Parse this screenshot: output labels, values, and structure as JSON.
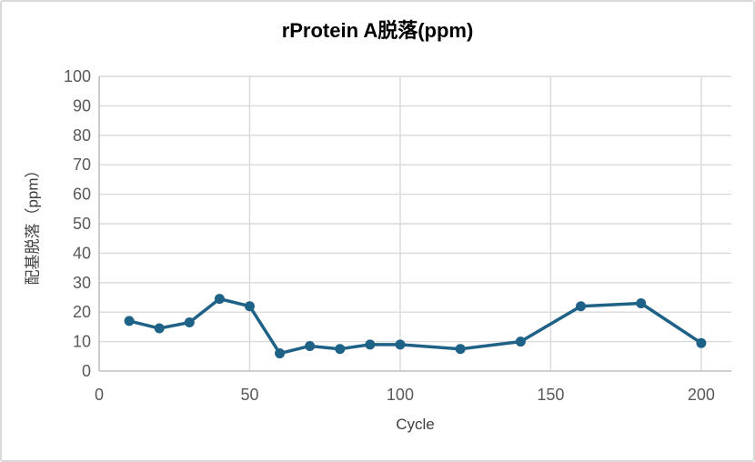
{
  "figure": {
    "background": "#ffffff",
    "border_color": "#d9d9d9"
  },
  "chart_data": {
    "type": "line",
    "title": "rProtein A脱落(ppm)",
    "xlabel": "Cycle",
    "ylabel": "配基脱落（ppm）",
    "x": [
      10,
      20,
      30,
      40,
      50,
      60,
      70,
      80,
      90,
      100,
      120,
      140,
      160,
      180,
      200
    ],
    "values": [
      17,
      14.5,
      16.5,
      24.5,
      22,
      6,
      8.5,
      7.5,
      9,
      9,
      7.5,
      10,
      22,
      23,
      9.5
    ],
    "xlim": [
      0,
      210
    ],
    "ylim": [
      0,
      100
    ],
    "x_ticks": [
      0,
      50,
      100,
      150,
      200
    ],
    "y_ticks": [
      0,
      10,
      20,
      30,
      40,
      50,
      60,
      70,
      80,
      90,
      100
    ],
    "grid": true,
    "legend_position": "none",
    "series_color": "#1f6287",
    "gridline_color": "#d9d9d9",
    "axis_line_color": "#bfbfbf",
    "tick_label_color": "#595959",
    "axis_title_color": "#404040",
    "title_color": "#000000",
    "marker": "circle"
  }
}
